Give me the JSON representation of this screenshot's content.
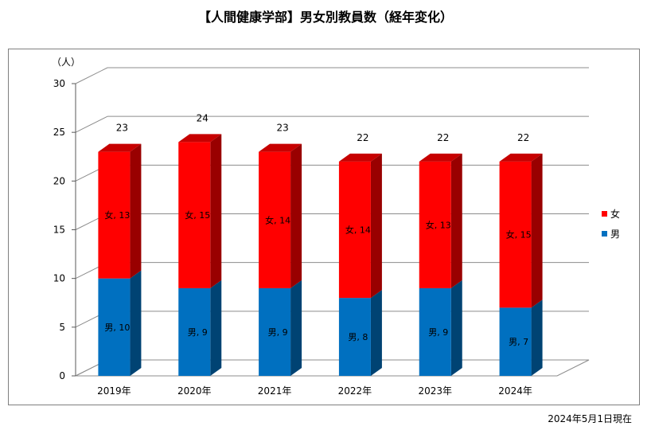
{
  "title": "【人間健康学部】男女別教員数（経年変化）",
  "note": "2024年5月1日現在",
  "chart_data": {
    "type": "bar",
    "stacked": true,
    "categories": [
      "2019年",
      "2020年",
      "2021年",
      "2022年",
      "2023年",
      "2024年"
    ],
    "series": [
      {
        "name": "男",
        "values": [
          10,
          9,
          9,
          8,
          9,
          7
        ],
        "color": "#0070C0",
        "labels": [
          "男, 10",
          "男, 9",
          "男, 9",
          "男, 8",
          "男, 9",
          "男, 7"
        ]
      },
      {
        "name": "女",
        "values": [
          13,
          15,
          14,
          14,
          13,
          15
        ],
        "color": "#FF0000",
        "labels": [
          "女, 13",
          "女, 15",
          "女, 14",
          "女, 14",
          "女, 13",
          "女, 15"
        ]
      }
    ],
    "totals": [
      23,
      24,
      23,
      22,
      22,
      22
    ],
    "ylabel": "（人）",
    "ylim": [
      0,
      30
    ],
    "yticks": [
      "0",
      "5",
      "10",
      "15",
      "20",
      "25",
      "30"
    ],
    "grid": true,
    "legend_position": "right",
    "legend_order": [
      "女",
      "男"
    ]
  }
}
